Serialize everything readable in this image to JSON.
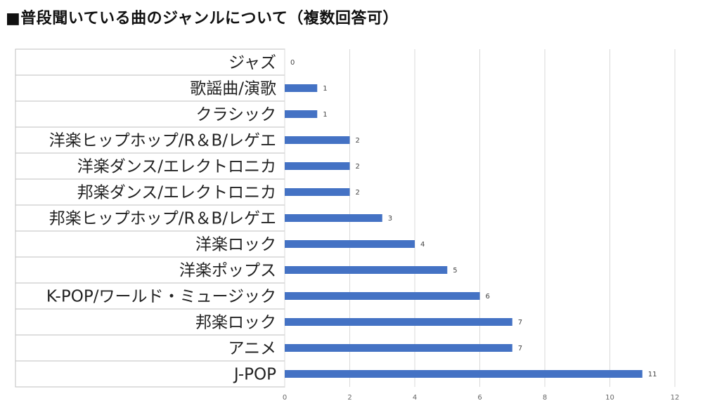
{
  "title": "■普段聞いている曲のジャンルについて（複数回答可）",
  "chart_data": {
    "type": "bar",
    "orientation": "horizontal",
    "title": "■普段聞いている曲のジャンルについて（複数回答可）",
    "categories": [
      "ジャズ",
      "歌謡曲/演歌",
      "クラシック",
      "洋楽ヒップホップ/R＆B/レゲエ",
      "洋楽ダンス/エレクトロニカ",
      "邦楽ダンス/エレクトロニカ",
      "邦楽ヒップホップ/R＆B/レゲエ",
      "洋楽ロック",
      "洋楽ポップス",
      "K-POP/ワールド・ミュージック",
      "邦楽ロック",
      "アニメ",
      "J-POP"
    ],
    "values": [
      0,
      1,
      1,
      2,
      2,
      2,
      3,
      4,
      5,
      6,
      7,
      7,
      11
    ],
    "xlim": [
      0,
      12
    ],
    "xticks": [
      0,
      2,
      4,
      6,
      8,
      10,
      12
    ],
    "grid": true,
    "data_labels": true,
    "bar_color": "#4472C4"
  }
}
